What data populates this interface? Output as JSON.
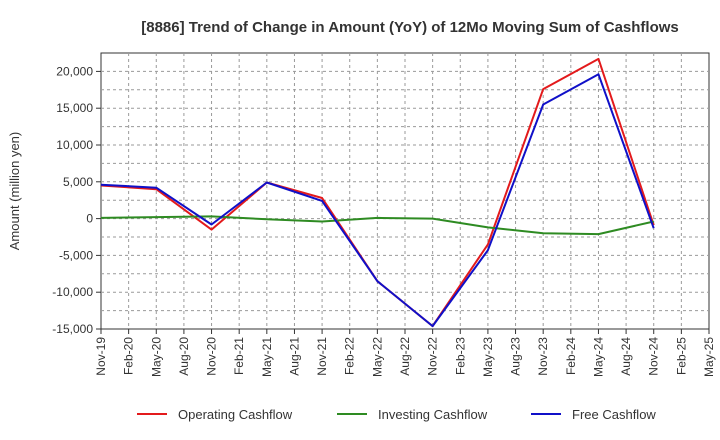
{
  "chart_data": {
    "type": "line",
    "title": "[8886]  Trend of Change in Amount (YoY) of 12Mo Moving Sum of Cashflows",
    "xlabel": "",
    "ylabel": "Amount (million yen)",
    "ylim": [
      -15000,
      22500
    ],
    "yticks": [
      -15000,
      -10000,
      -5000,
      0,
      5000,
      10000,
      15000,
      20000
    ],
    "ytick_labels": [
      "-15,000",
      "-10,000",
      "-5,000",
      "0",
      "5,000",
      "10,000",
      "15,000",
      "20,000"
    ],
    "categories": [
      "Nov-19",
      "Feb-20",
      "May-20",
      "Aug-20",
      "Nov-20",
      "Feb-21",
      "May-21",
      "Aug-21",
      "Nov-21",
      "Feb-22",
      "May-22",
      "Aug-22",
      "Nov-22",
      "Feb-23",
      "May-23",
      "Aug-23",
      "Nov-23",
      "Feb-24",
      "May-24",
      "Aug-24",
      "Nov-24",
      "Feb-25",
      "May-25"
    ],
    "grid": true,
    "legend_position": "bottom",
    "series": [
      {
        "name": "Operating Cashflow",
        "color": "#e31a1c",
        "values": [
          4500,
          null,
          4000,
          null,
          -1500,
          null,
          4900,
          null,
          2800,
          null,
          -8500,
          null,
          -14600,
          null,
          -3500,
          null,
          17600,
          null,
          21700,
          null,
          -900,
          null,
          null
        ]
      },
      {
        "name": "Investing Cashflow",
        "color": "#2e8b22",
        "values": [
          100,
          null,
          200,
          null,
          300,
          null,
          -100,
          null,
          -400,
          null,
          100,
          null,
          0,
          null,
          -1200,
          null,
          -2000,
          null,
          -2100,
          null,
          -400,
          null,
          null
        ]
      },
      {
        "name": "Free Cashflow",
        "color": "#1010c8",
        "values": [
          4600,
          null,
          4200,
          null,
          -800,
          null,
          4900,
          null,
          2400,
          null,
          -8500,
          null,
          -14600,
          null,
          -4300,
          null,
          15500,
          null,
          19600,
          null,
          -1300,
          null,
          null
        ]
      }
    ]
  }
}
